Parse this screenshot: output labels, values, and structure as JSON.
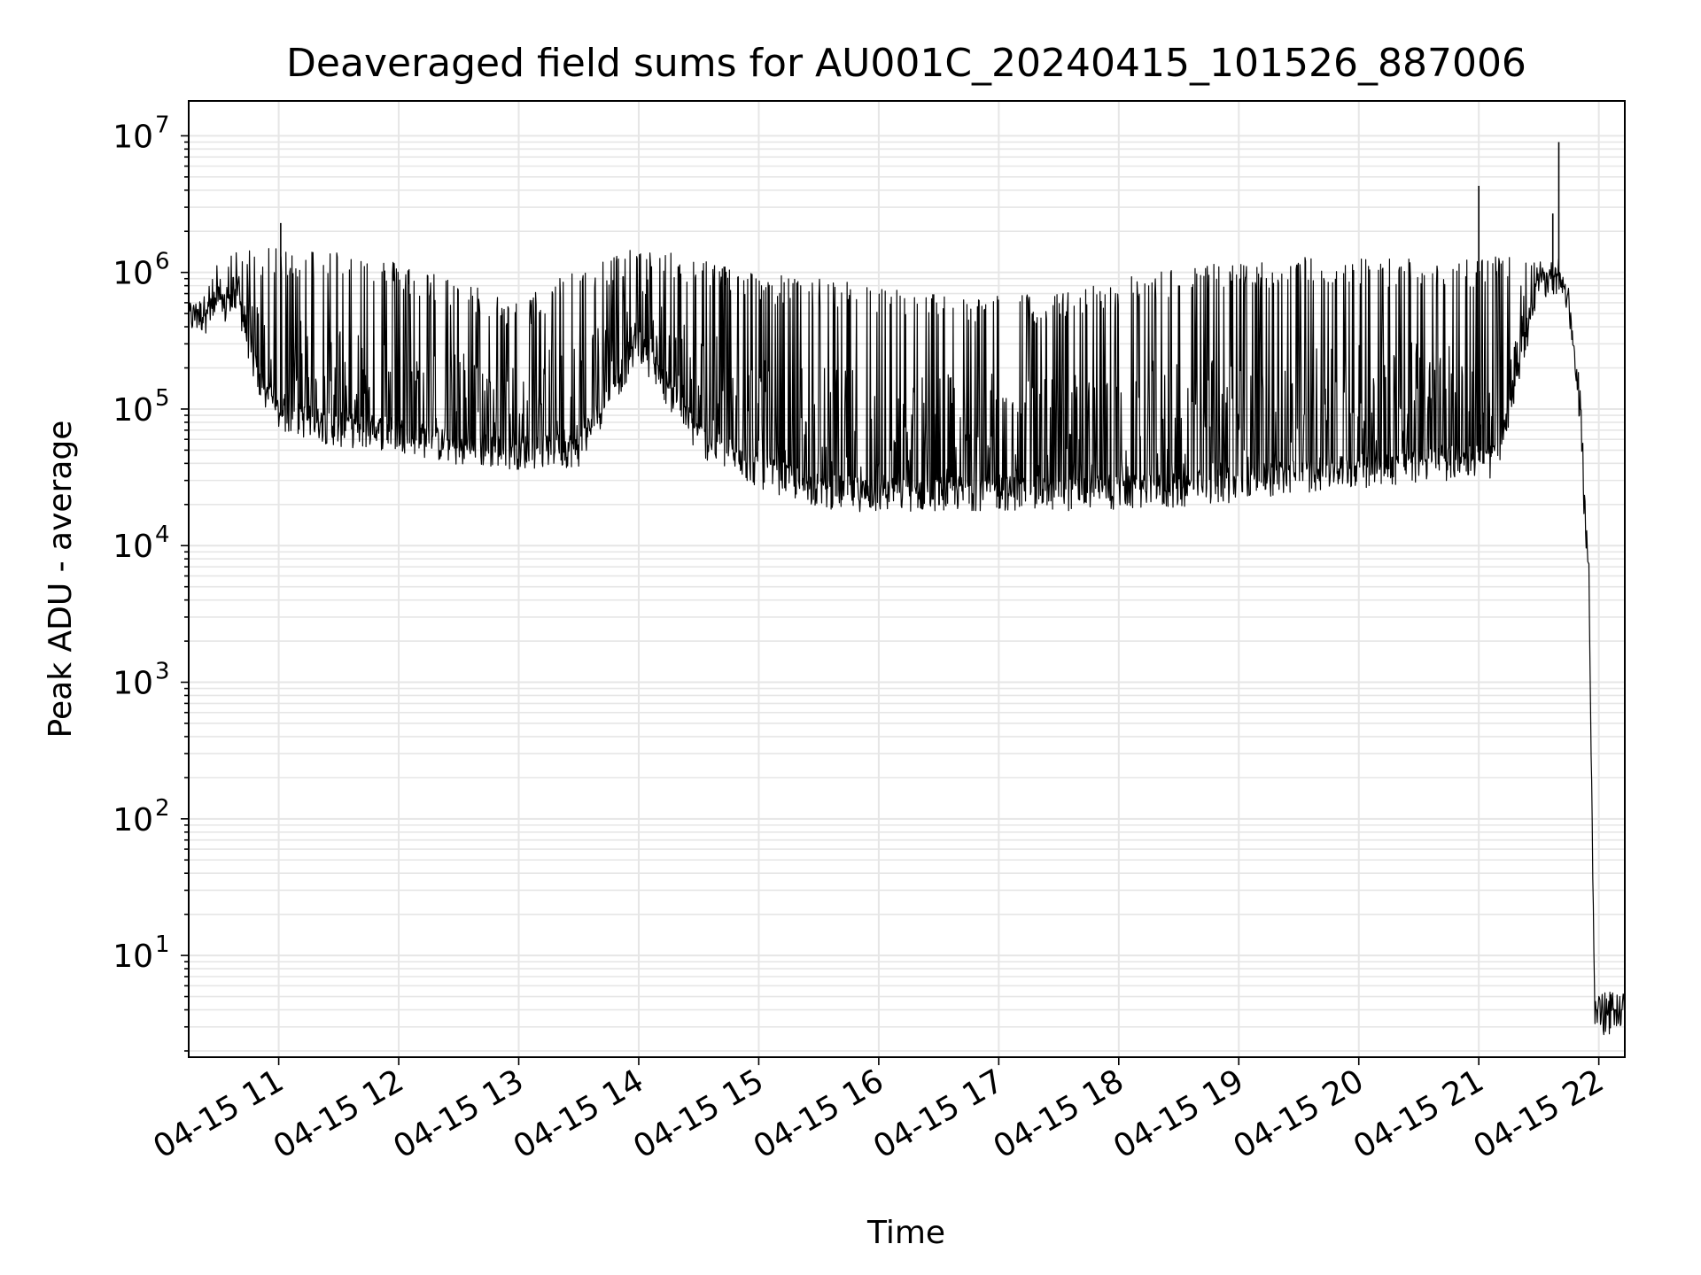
{
  "chart_data": {
    "type": "line",
    "title": "Deaveraged field sums for AU001C_20240415_101526_887006",
    "xlabel": "Time",
    "ylabel": "Peak ADU - average",
    "yscale": "log",
    "ylim": [
      1.8,
      18000000
    ],
    "xlim": [
      "2024-04-15 10:15",
      "2024-04-15 22:13"
    ],
    "grid": true,
    "grid_color": "#e6e6e6",
    "line_color": "#000000",
    "x_ticks": [
      "04-15 11",
      "04-15 12",
      "04-15 13",
      "04-15 14",
      "04-15 15",
      "04-15 16",
      "04-15 17",
      "04-15 18",
      "04-15 19",
      "04-15 20",
      "04-15 21",
      "04-15 22"
    ],
    "y_ticks": [
      {
        "base": "10",
        "exp": "1",
        "value": 10
      },
      {
        "base": "10",
        "exp": "2",
        "value": 100
      },
      {
        "base": "10",
        "exp": "3",
        "value": 1000
      },
      {
        "base": "10",
        "exp": "4",
        "value": 10000
      },
      {
        "base": "10",
        "exp": "5",
        "value": 100000
      },
      {
        "base": "10",
        "exp": "6",
        "value": 1000000
      },
      {
        "base": "10",
        "exp": "7",
        "value": 10000000
      }
    ],
    "series": [
      {
        "x": [
          "2024-04-15 10:15",
          "2024-04-15 10:30",
          "2024-04-15 10:40",
          "2024-04-15 10:50",
          "2024-04-15 11:00",
          "2024-04-15 11:30",
          "2024-04-15 12:00",
          "2024-04-15 12:30",
          "2024-04-15 13:00",
          "2024-04-15 13:30",
          "2024-04-15 14:00",
          "2024-04-15 14:30",
          "2024-04-15 15:00",
          "2024-04-15 15:30",
          "2024-04-15 16:00",
          "2024-04-15 16:30",
          "2024-04-15 17:00",
          "2024-04-15 17:30",
          "2024-04-15 18:00",
          "2024-04-15 18:30",
          "2024-04-15 19:00",
          "2024-04-15 19:30",
          "2024-04-15 20:00",
          "2024-04-15 20:30",
          "2024-04-15 21:00",
          "2024-04-15 21:10",
          "2024-04-15 21:20",
          "2024-04-15 21:30",
          "2024-04-15 21:40",
          "2024-04-15 21:45",
          "2024-04-15 21:50",
          "2024-04-15 21:55",
          "2024-04-15 21:58",
          "2024-04-15 22:13"
        ],
        "y_low": [
          450000,
          500000,
          600000,
          150000,
          90000,
          70000,
          65000,
          50000,
          48000,
          50000,
          300000,
          60000,
          35000,
          25000,
          23000,
          24000,
          24000,
          24000,
          24000,
          25000,
          28000,
          32000,
          35000,
          38000,
          42000,
          40000,
          200000,
          800000,
          950000,
          600000,
          100000,
          5000,
          4,
          4
        ],
        "y_high": [
          600000,
          1200000,
          1500000,
          1500000,
          1500000,
          1500000,
          1200000,
          900000,
          600000,
          1200000,
          1500000,
          1300000,
          1000000,
          900000,
          800000,
          700000,
          700000,
          700000,
          900000,
          1100000,
          1200000,
          1300000,
          1300000,
          1300000,
          1300000,
          1300000,
          1300000,
          1200000,
          1100000,
          800000,
          200000,
          10000,
          4,
          4
        ]
      }
    ],
    "spikes": [
      {
        "x": "2024-04-15 11:01",
        "y": 2300000
      },
      {
        "x": "2024-04-15 21:00",
        "y": 4300000
      },
      {
        "x": "2024-04-15 21:37",
        "y": 2700000
      },
      {
        "x": "2024-04-15 21:40",
        "y": 9000000
      }
    ]
  }
}
